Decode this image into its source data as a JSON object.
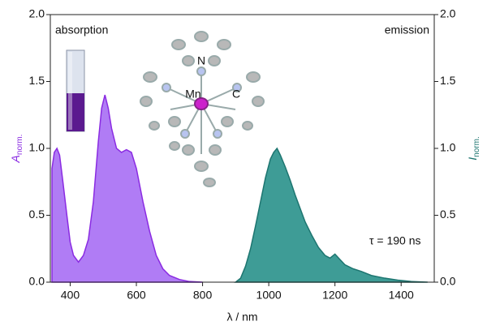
{
  "chart_data": {
    "type": "area",
    "xlabel": "λ / nm",
    "ylabel": {
      "symbol": "A",
      "subscript": "norm."
    },
    "y2label": {
      "symbol": "I",
      "subscript": "norm."
    },
    "annotations": [
      "τ = 190 ns",
      "N",
      "Mn",
      "C"
    ],
    "xlim": [
      340,
      1500
    ],
    "xticks": [
      400,
      600,
      800,
      1000,
      1200,
      1400
    ],
    "ylim": [
      0,
      2
    ],
    "yticks": [
      {
        "value": 0,
        "label": "0.0"
      },
      {
        "value": 0.5,
        "label": "0.5"
      },
      {
        "value": 1,
        "label": "1.0"
      },
      {
        "value": 1.5,
        "label": "1.5"
      },
      {
        "value": 2,
        "label": "2.0"
      }
    ],
    "y2lim": [
      0,
      2
    ],
    "y2ticks": [
      {
        "value": 0,
        "label": "0.0"
      },
      {
        "value": 0.5,
        "label": "0.5"
      },
      {
        "value": 1,
        "label": "1.0"
      },
      {
        "value": 1.5,
        "label": "1.5"
      },
      {
        "value": 2,
        "label": "2.0"
      }
    ],
    "series": [
      {
        "name": "absorption",
        "color": "#8a2be2",
        "fill": "#b07cf5",
        "x": [
          345,
          352,
          360,
          368,
          378,
          390,
          400,
          410,
          425,
          440,
          455,
          470,
          485,
          495,
          505,
          515,
          525,
          540,
          555,
          570,
          585,
          600,
          620,
          640,
          660,
          680,
          700,
          730,
          760,
          800
        ],
        "values": [
          0.85,
          0.97,
          1.0,
          0.95,
          0.75,
          0.5,
          0.3,
          0.2,
          0.15,
          0.2,
          0.32,
          0.6,
          1.05,
          1.3,
          1.4,
          1.3,
          1.15,
          1.0,
          0.97,
          0.99,
          0.97,
          0.85,
          0.6,
          0.38,
          0.2,
          0.1,
          0.05,
          0.02,
          0.005,
          0
        ]
      },
      {
        "name": "emission",
        "color": "#1d7570",
        "fill": "#3e9c96",
        "axis": "y2",
        "x": [
          900,
          915,
          930,
          945,
          960,
          975,
          990,
          1005,
          1015,
          1025,
          1035,
          1050,
          1065,
          1080,
          1095,
          1110,
          1130,
          1150,
          1170,
          1185,
          1200,
          1215,
          1230,
          1255,
          1280,
          1310,
          1350,
          1390,
          1430,
          1480
        ],
        "values": [
          0,
          0.03,
          0.12,
          0.25,
          0.42,
          0.6,
          0.78,
          0.92,
          0.97,
          1.0,
          0.95,
          0.86,
          0.76,
          0.65,
          0.55,
          0.45,
          0.35,
          0.26,
          0.2,
          0.18,
          0.21,
          0.17,
          0.13,
          0.1,
          0.08,
          0.05,
          0.03,
          0.015,
          0.005,
          0
        ]
      }
    ]
  }
}
